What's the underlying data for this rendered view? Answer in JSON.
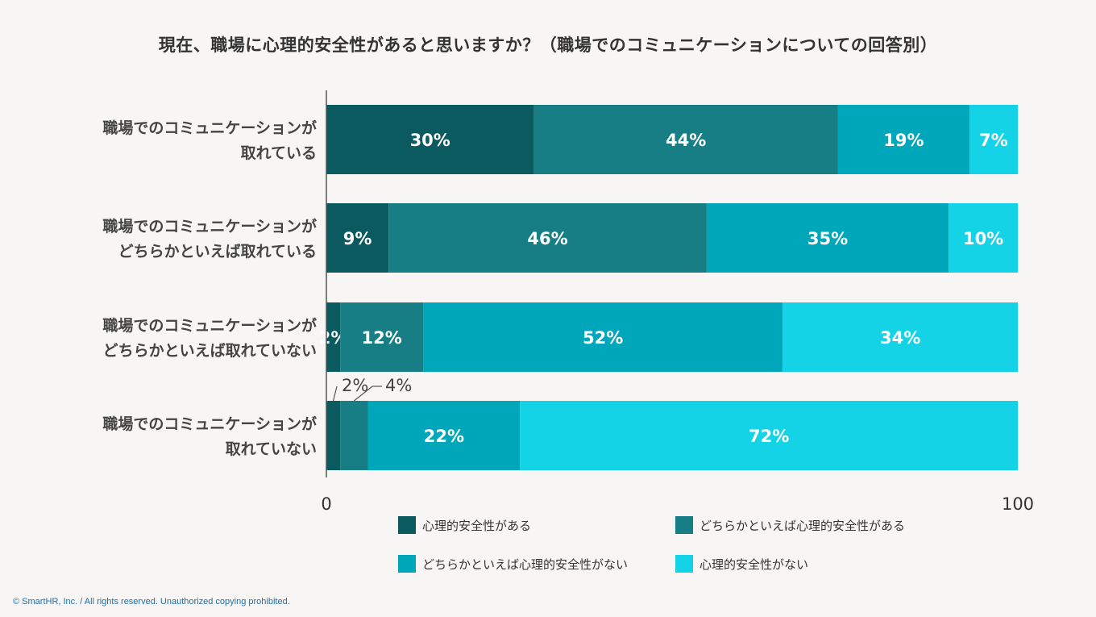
{
  "chart_data": {
    "type": "bar",
    "orientation": "horizontal",
    "stacked": true,
    "title": "現在、職場に心理的安全性があると思いますか？（職場でのコミュニケーションについての回答別）",
    "categories": [
      [
        "職場でのコミュニケーションが",
        "取れている"
      ],
      [
        "職場でのコミュニケーションが",
        "どちらかといえば取れている"
      ],
      [
        "職場でのコミュニケーションが",
        "どちらかといえば取れていない"
      ],
      [
        "職場でのコミュニケーションが",
        "取れていない"
      ]
    ],
    "series": [
      {
        "name": "心理的安全性がある",
        "color": "#0b5a60",
        "values": [
          30,
          9,
          2,
          2
        ]
      },
      {
        "name": "どちらかといえば心理的安全性がある",
        "color": "#167e84",
        "values": [
          44,
          46,
          12,
          4
        ]
      },
      {
        "name": "どちらかといえば心理的安全性がない",
        "color": "#00a6b9",
        "values": [
          19,
          35,
          52,
          22
        ]
      },
      {
        "name": "心理的安全性がない",
        "color": "#15d3e6",
        "values": [
          7,
          10,
          34,
          72
        ]
      }
    ],
    "value_suffix": "%",
    "xlim": [
      0,
      100
    ],
    "xticks": [
      "0",
      "100"
    ],
    "legend": "bottom",
    "outside_label_threshold": 5
  },
  "footer": {
    "copyright": "© SmartHR, Inc. / All rights reserved. Unauthorized copying prohibited."
  }
}
